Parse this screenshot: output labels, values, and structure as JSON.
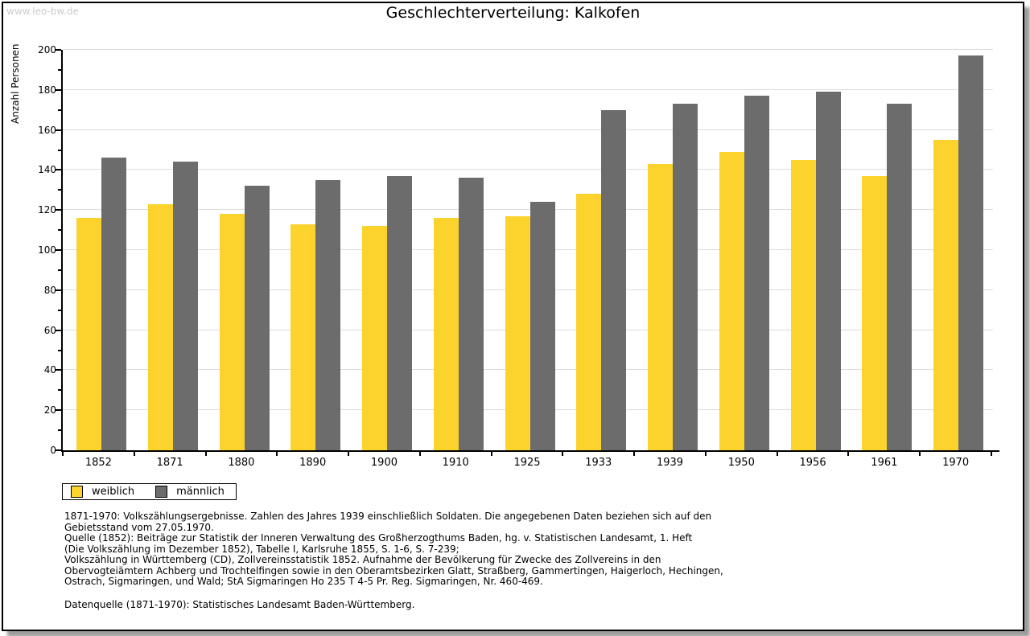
{
  "watermark": "www.leo-bw.de",
  "title": "Geschlechterverteilung: Kalkofen",
  "colors": {
    "female_bar": "#FCD32C",
    "male_bar": "#6C6C6C",
    "gridline": "#DCDCDC",
    "axis": "#000000",
    "watermark": "#CCCCCC",
    "card_shadow": "#9C9C9C"
  },
  "chart_data": {
    "type": "bar",
    "title": "Geschlechterverteilung: Kalkofen",
    "xlabel": "",
    "ylabel": "Anzahl Personen",
    "ylim": [
      0,
      200
    ],
    "ytick_step": 20,
    "ytick_labels": [
      "0",
      "20",
      "40",
      "60",
      "80",
      "100",
      "120",
      "140",
      "160",
      "180",
      "200"
    ],
    "grid": true,
    "legend_position": "bottom-left",
    "categories": [
      "1852",
      "1871",
      "1880",
      "1890",
      "1900",
      "1910",
      "1925",
      "1933",
      "1939",
      "1950",
      "1956",
      "1961",
      "1970"
    ],
    "series": [
      {
        "name": "weiblich",
        "color": "#FCD32C",
        "values": [
          116,
          123,
          118,
          113,
          112,
          116,
          117,
          128,
          143,
          149,
          145,
          137,
          155
        ]
      },
      {
        "name": "männlich",
        "color": "#6C6C6C",
        "values": [
          146,
          144,
          132,
          135,
          137,
          136,
          124,
          170,
          173,
          177,
          179,
          173,
          197
        ]
      }
    ]
  },
  "legend": {
    "items": [
      {
        "label": "weiblich",
        "color": "#FCD32C"
      },
      {
        "label": "männlich",
        "color": "#6C6C6C"
      }
    ]
  },
  "footer": {
    "lines": [
      "1871-1970: Volkszählungsergebnisse. Zahlen des Jahres 1939 einschließlich Soldaten. Die angegebenen Daten beziehen sich auf den",
      "Gebietsstand vom 27.05.1970.",
      "Quelle (1852): Beiträge zur Statistik der Inneren Verwaltung des Großherzogthums Baden, hg. v. Statistischen Landesamt, 1. Heft",
      "(Die Volkszählung im Dezember 1852), Tabelle I, Karlsruhe 1855, S. 1-6, S. 7-239;",
      "Volkszählung in Württemberg (CD), Zollvereinsstatistik 1852. Aufnahme der Bevölkerung für Zwecke des Zollvereins in den",
      "Obervogteiämtern Achberg und Trochtelfingen sowie in den Oberamtsbezirken Glatt, Straßberg, Gammertingen, Haigerloch, Hechingen,",
      "Ostrach, Sigmaringen, und Wald; StA Sigmaringen Ho 235 T 4-5 Pr. Reg. Sigmaringen, Nr. 460-469."
    ],
    "datasource": "Datenquelle (1871-1970): Statistisches Landesamt Baden-Württemberg."
  }
}
